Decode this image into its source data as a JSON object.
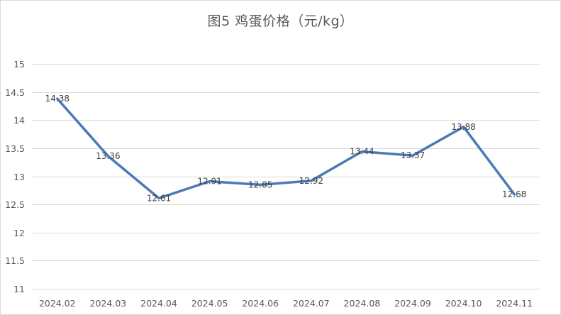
{
  "chart_data": {
    "type": "line",
    "title": "图5  鸡蛋价格（元/kg）",
    "xlabel": "",
    "ylabel": "",
    "categories": [
      "2024.02",
      "2024.03",
      "2024.04",
      "2024.05",
      "2024.06",
      "2024.07",
      "2024.08",
      "2024.09",
      "2024.10",
      "2024.11"
    ],
    "series": [
      {
        "values": [
          14.38,
          13.36,
          12.61,
          12.91,
          12.85,
          12.92,
          13.44,
          13.37,
          13.88,
          12.68
        ],
        "labels": [
          "14.38",
          "13.36",
          "12.61",
          "12.91",
          "12.85",
          "12.92",
          "13.44",
          "13.37",
          "13.88",
          "12.68"
        ],
        "color": "#4a7ab8"
      }
    ],
    "ylim": [
      11,
      15
    ],
    "yticks": [
      11,
      11.5,
      12,
      12.5,
      13,
      13.5,
      14,
      14.5,
      15
    ],
    "ytick_labels": [
      "11",
      "11.5",
      "12",
      "12.5",
      "13",
      "13.5",
      "14",
      "14.5",
      "15"
    ],
    "grid": true,
    "legend": "none",
    "gridline_color": "#d9d9d9",
    "text_color": "#595959"
  }
}
